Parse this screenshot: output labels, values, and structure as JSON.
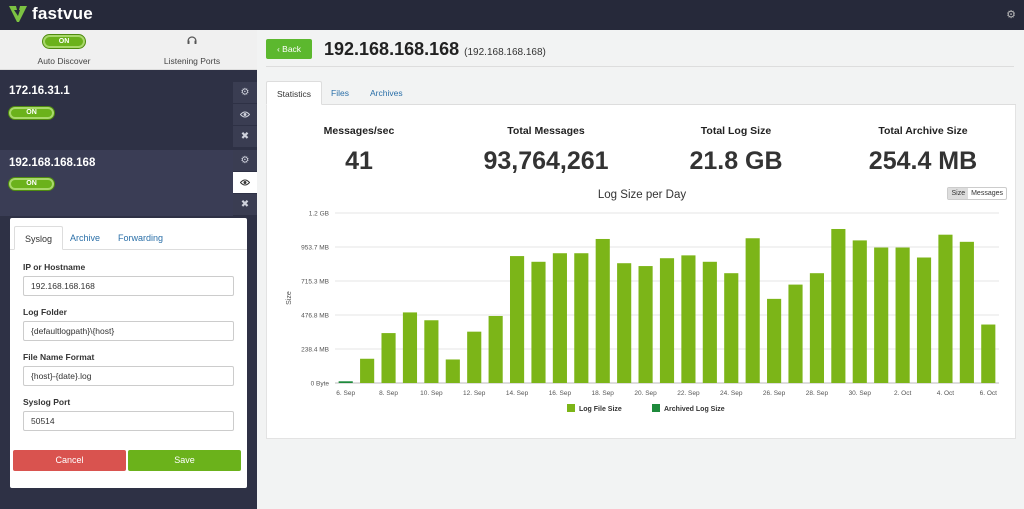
{
  "app": {
    "name": "fastvue"
  },
  "colors": {
    "brand_green": "#6bb21b",
    "sidebar_bg": "#2e3145",
    "topbar_bg": "#26293a",
    "bar_log": "#7cb518",
    "bar_archive": "#1e8a3c",
    "cancel": "#d9534f",
    "save": "#6bb21b"
  },
  "sidebar": {
    "auto_discover": {
      "toggle": "ON",
      "label": "Auto Discover"
    },
    "listening_ports": {
      "label": "Listening Ports",
      "icon": "headset-icon"
    },
    "hosts": [
      {
        "ip": "172.16.31.1",
        "toggle": "ON"
      },
      {
        "ip": "192.168.168.168",
        "toggle": "ON"
      }
    ]
  },
  "settings": {
    "tabs": [
      "Syslog",
      "Archive",
      "Forwarding"
    ],
    "fields": [
      {
        "label": "IP or Hostname",
        "value": "192.168.168.168"
      },
      {
        "label": "Log Folder",
        "value": "{defaultlogpath}\\{host}"
      },
      {
        "label": "File Name Format",
        "value": "{host}-{date}.log"
      },
      {
        "label": "Syslog Port",
        "value": "50514"
      }
    ],
    "cancel_label": "Cancel",
    "save_label": "Save"
  },
  "header": {
    "back_label": "Back",
    "title": "192.168.168.168",
    "subtitle": "(192.168.168.168)"
  },
  "main_tabs": [
    "Statistics",
    "Files",
    "Archives"
  ],
  "stats": [
    {
      "label": "Messages/sec",
      "value": "41"
    },
    {
      "label": "Total Messages",
      "value": "93,764,261"
    },
    {
      "label": "Total Log Size",
      "value": "21.8 GB"
    },
    {
      "label": "Total Archive Size",
      "value": "254.4 MB"
    }
  ],
  "chart_toggle": {
    "options": [
      "Size",
      "Messages"
    ],
    "selected": "Size"
  },
  "chart_data": {
    "type": "bar",
    "title": "Log Size per Day",
    "ylabel": "Size",
    "y_ticks": [
      "0 Byte",
      "238.4 MB",
      "476.8 MB",
      "715.3 MB",
      "953.7 MB",
      "1.2 GB"
    ],
    "y_tick_values_mb": [
      0,
      238.4,
      476.8,
      715.3,
      953.7,
      1192.1
    ],
    "ylim_mb": [
      0,
      1192.1
    ],
    "x_tick_labels": [
      "6. Sep",
      "8. Sep",
      "10. Sep",
      "12. Sep",
      "14. Sep",
      "16. Sep",
      "18. Sep",
      "20. Sep",
      "22. Sep",
      "24. Sep",
      "26. Sep",
      "28. Sep",
      "30. Sep",
      "2. Oct",
      "4. Oct",
      "6. Oct"
    ],
    "categories": [
      "6. Sep",
      "7. Sep",
      "8. Sep",
      "9. Sep",
      "10. Sep",
      "11. Sep",
      "12. Sep",
      "13. Sep",
      "14. Sep",
      "15. Sep",
      "16. Sep",
      "17. Sep",
      "18. Sep",
      "19. Sep",
      "20. Sep",
      "21. Sep",
      "22. Sep",
      "23. Sep",
      "24. Sep",
      "25. Sep",
      "26. Sep",
      "27. Sep",
      "28. Sep",
      "29. Sep",
      "30. Sep",
      "1. Oct",
      "2. Oct",
      "3. Oct",
      "4. Oct",
      "5. Oct",
      "6. Oct"
    ],
    "series": [
      {
        "name": "Log File Size",
        "color": "#7cb518",
        "values": [
          0,
          170,
          350,
          495,
          440,
          165,
          360,
          470,
          890,
          850,
          910,
          910,
          1010,
          840,
          820,
          875,
          895,
          850,
          770,
          1015,
          590,
          690,
          770,
          1080,
          1000,
          950,
          950,
          880,
          1040,
          990,
          410
        ]
      },
      {
        "name": "Archived Log Size",
        "color": "#1e8a3c",
        "values": [
          12,
          0,
          0,
          0,
          0,
          0,
          0,
          0,
          0,
          0,
          0,
          0,
          0,
          0,
          0,
          0,
          0,
          0,
          0,
          0,
          0,
          0,
          0,
          0,
          0,
          0,
          0,
          0,
          0,
          0,
          0
        ]
      }
    ],
    "grid": true,
    "legend": "bottom-center"
  }
}
